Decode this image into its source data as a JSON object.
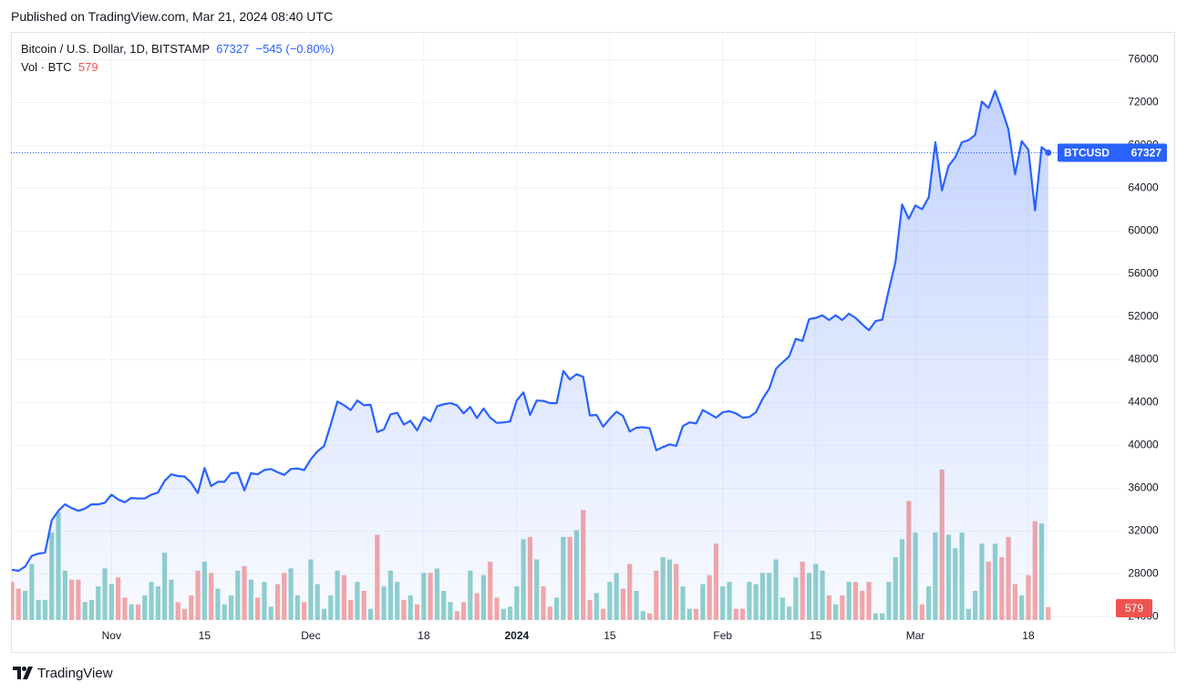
{
  "published": "Published on TradingView.com, Mar 21, 2024 08:40 UTC",
  "brand": "TradingView",
  "chart_data": {
    "type": "area",
    "title": "Bitcoin / U.S. Dollar, 1D, BITSTAMP",
    "change": "−545 (−0.80%)",
    "x": [
      "2023-10-17",
      "2023-10-18",
      "2023-10-19",
      "2023-10-20",
      "2023-10-21",
      "2023-10-22",
      "2023-10-23",
      "2023-10-24",
      "2023-10-25",
      "2023-10-26",
      "2023-10-27",
      "2023-10-28",
      "2023-10-29",
      "2023-10-30",
      "2023-10-31",
      "2023-11-01",
      "2023-11-02",
      "2023-11-03",
      "2023-11-04",
      "2023-11-05",
      "2023-11-06",
      "2023-11-07",
      "2023-11-08",
      "2023-11-09",
      "2023-11-10",
      "2023-11-11",
      "2023-11-12",
      "2023-11-13",
      "2023-11-14",
      "2023-11-15",
      "2023-11-16",
      "2023-11-17",
      "2023-11-18",
      "2023-11-19",
      "2023-11-20",
      "2023-11-21",
      "2023-11-22",
      "2023-11-23",
      "2023-11-24",
      "2023-11-25",
      "2023-11-26",
      "2023-11-27",
      "2023-11-28",
      "2023-11-29",
      "2023-11-30",
      "2023-12-01",
      "2023-12-02",
      "2023-12-03",
      "2023-12-04",
      "2023-12-05",
      "2023-12-06",
      "2023-12-07",
      "2023-12-08",
      "2023-12-09",
      "2023-12-10",
      "2023-12-11",
      "2023-12-12",
      "2023-12-13",
      "2023-12-14",
      "2023-12-15",
      "2023-12-16",
      "2023-12-17",
      "2023-12-18",
      "2023-12-19",
      "2023-12-20",
      "2023-12-21",
      "2023-12-22",
      "2023-12-23",
      "2023-12-24",
      "2023-12-25",
      "2023-12-26",
      "2023-12-27",
      "2023-12-28",
      "2023-12-29",
      "2023-12-30",
      "2023-12-31",
      "2024-01-01",
      "2024-01-02",
      "2024-01-03",
      "2024-01-04",
      "2024-01-05",
      "2024-01-06",
      "2024-01-07",
      "2024-01-08",
      "2024-01-09",
      "2024-01-10",
      "2024-01-11",
      "2024-01-12",
      "2024-01-13",
      "2024-01-14",
      "2024-01-15",
      "2024-01-16",
      "2024-01-17",
      "2024-01-18",
      "2024-01-19",
      "2024-01-20",
      "2024-01-21",
      "2024-01-22",
      "2024-01-23",
      "2024-01-24",
      "2024-01-25",
      "2024-01-26",
      "2024-01-27",
      "2024-01-28",
      "2024-01-29",
      "2024-01-30",
      "2024-01-31",
      "2024-02-01",
      "2024-02-02",
      "2024-02-03",
      "2024-02-04",
      "2024-02-05",
      "2024-02-06",
      "2024-02-07",
      "2024-02-08",
      "2024-02-09",
      "2024-02-10",
      "2024-02-11",
      "2024-02-12",
      "2024-02-13",
      "2024-02-14",
      "2024-02-15",
      "2024-02-16",
      "2024-02-17",
      "2024-02-18",
      "2024-02-19",
      "2024-02-20",
      "2024-02-21",
      "2024-02-22",
      "2024-02-23",
      "2024-02-24",
      "2024-02-25",
      "2024-02-26",
      "2024-02-27",
      "2024-02-28",
      "2024-02-29",
      "2024-03-01",
      "2024-03-02",
      "2024-03-03",
      "2024-03-04",
      "2024-03-05",
      "2024-03-06",
      "2024-03-07",
      "2024-03-08",
      "2024-03-09",
      "2024-03-10",
      "2024-03-11",
      "2024-03-12",
      "2024-03-13",
      "2024-03-14",
      "2024-03-15",
      "2024-03-16",
      "2024-03-17",
      "2024-03-18",
      "2024-03-19",
      "2024-03-20",
      "2024-03-21"
    ],
    "series": [
      {
        "name": "BTCUSD",
        "color": "#2962ff",
        "values": [
          28400,
          28300,
          28700,
          29700,
          29900,
          30000,
          33000,
          33900,
          34500,
          34150,
          33900,
          34100,
          34500,
          34500,
          34650,
          35400,
          34950,
          34700,
          35100,
          35050,
          35050,
          35400,
          35600,
          36700,
          37300,
          37150,
          37100,
          36500,
          35550,
          37900,
          36200,
          36600,
          36600,
          37400,
          37450,
          35800,
          37400,
          37300,
          37700,
          37800,
          37500,
          37250,
          37800,
          37850,
          37700,
          38700,
          39450,
          39950,
          41950,
          44100,
          43750,
          43300,
          44200,
          43750,
          43800,
          41250,
          41500,
          42900,
          43050,
          41950,
          42300,
          41400,
          42650,
          42250,
          43650,
          43850,
          43950,
          43750,
          43000,
          43600,
          42550,
          43450,
          42600,
          42100,
          42150,
          42250,
          44200,
          44950,
          42850,
          44200,
          44150,
          43950,
          43950,
          46950,
          46150,
          46650,
          46400,
          42800,
          42850,
          41750,
          42500,
          43150,
          42750,
          41300,
          41650,
          41700,
          41600,
          39550,
          39850,
          40100,
          39950,
          41800,
          42150,
          42050,
          43300,
          42950,
          42600,
          43100,
          43200,
          43000,
          42600,
          42650,
          43100,
          44350,
          45300,
          47150,
          47750,
          48300,
          49950,
          49750,
          51800,
          51900,
          52150,
          51700,
          52150,
          51700,
          52300,
          51900,
          51300,
          50750,
          51600,
          51750,
          54500,
          57100,
          62500,
          61150,
          62400,
          62050,
          63150,
          68300,
          63800,
          66100,
          66900,
          68300,
          68500,
          69000,
          72100,
          71500,
          73100,
          71400,
          69500,
          65300,
          68400,
          67600,
          61950,
          67850,
          67327
        ]
      }
    ],
    "volume": {
      "name": "Vol · BTC",
      "up_color": "#92d2cc",
      "down_color": "#f7a9a7",
      "values": [
        1700,
        1400,
        1300,
        2500,
        900,
        900,
        3900,
        4800,
        2200,
        1800,
        1800,
        800,
        900,
        1500,
        2300,
        1600,
        1900,
        1000,
        700,
        700,
        1100,
        1700,
        1500,
        3000,
        1800,
        800,
        500,
        1100,
        2200,
        2600,
        2100,
        1400,
        700,
        1100,
        2200,
        2400,
        1800,
        1000,
        1700,
        600,
        1600,
        2100,
        2300,
        1100,
        800,
        2700,
        1600,
        500,
        1100,
        2200,
        2000,
        900,
        1700,
        1300,
        500,
        3800,
        1500,
        2200,
        1700,
        900,
        1100,
        700,
        2100,
        2100,
        2300,
        1300,
        800,
        400,
        800,
        2200,
        1200,
        2000,
        2600,
        1000,
        500,
        600,
        1500,
        3600,
        3700,
        2700,
        1500,
        600,
        1000,
        3700,
        3700,
        4000,
        4900,
        900,
        1200,
        500,
        1700,
        2100,
        1400,
        2500,
        1300,
        400,
        300,
        2200,
        2800,
        2700,
        2500,
        1500,
        500,
        500,
        1600,
        2000,
        3400,
        1500,
        1700,
        500,
        500,
        1700,
        1600,
        2100,
        2100,
        2700,
        1000,
        600,
        1900,
        2600,
        2100,
        2500,
        2200,
        1100,
        700,
        1100,
        1700,
        1700,
        1300,
        1700,
        300,
        300,
        1700,
        2800,
        3600,
        5300,
        3900,
        700,
        1500,
        3900,
        6700,
        3800,
        3200,
        3900,
        500,
        1300,
        3400,
        2600,
        3400,
        2800,
        3700,
        1600,
        1100,
        2000,
        4400,
        4300,
        579
      ]
    },
    "xlim": [
      "2023-10-17",
      "2024-04-01"
    ],
    "xticks": [
      {
        "value": "2023-11-01",
        "label": "Nov"
      },
      {
        "value": "2023-11-15",
        "label": "15"
      },
      {
        "value": "2023-12-01",
        "label": "Dec"
      },
      {
        "value": "2023-12-18",
        "label": "18"
      },
      {
        "value": "2024-01-01",
        "label": "2024"
      },
      {
        "value": "2024-01-15",
        "label": "15"
      },
      {
        "value": "2024-02-01",
        "label": "Feb"
      },
      {
        "value": "2024-02-15",
        "label": "15"
      },
      {
        "value": "2024-03-01",
        "label": "Mar"
      },
      {
        "value": "2024-03-18",
        "label": "18"
      }
    ],
    "ylim": [
      23700,
      78600
    ],
    "yticks": [
      24000,
      28000,
      32000,
      36000,
      40000,
      44000,
      48000,
      52000,
      56000,
      60000,
      64000,
      68000,
      72000,
      76000
    ],
    "grid": true
  }
}
